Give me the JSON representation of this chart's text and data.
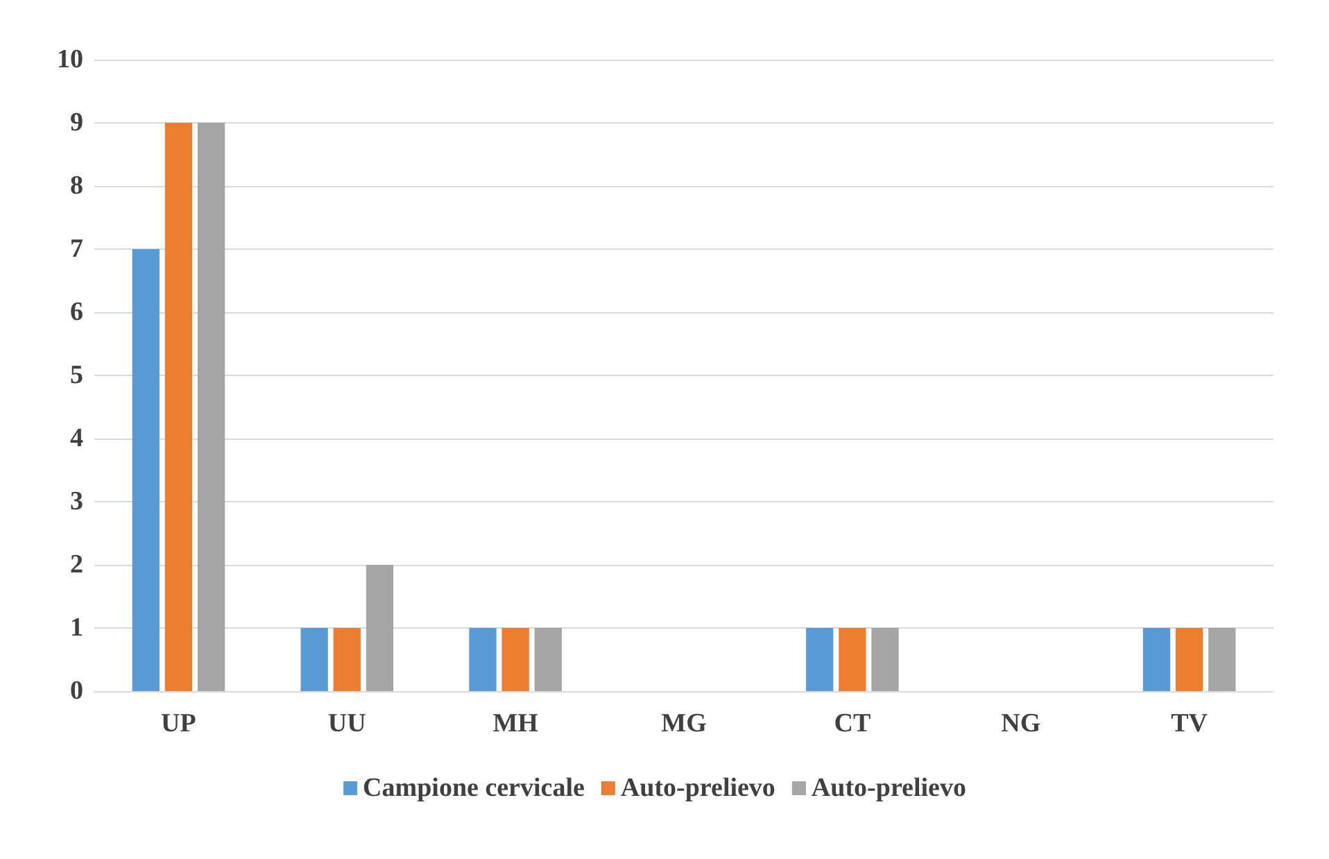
{
  "chart_data": {
    "type": "bar",
    "categories": [
      "UP",
      "UU",
      "MH",
      "MG",
      "CT",
      "NG",
      "TV"
    ],
    "series": [
      {
        "name": "Campione cervicale",
        "color": "#5b9bd5",
        "values": [
          7,
          1,
          1,
          0,
          1,
          0,
          1
        ]
      },
      {
        "name": "Auto-prelievo",
        "color": "#ed7d31",
        "values": [
          9,
          1,
          1,
          0,
          1,
          0,
          1
        ]
      },
      {
        "name": "Auto-prelievo",
        "color": "#a5a5a5",
        "values": [
          9,
          2,
          1,
          0,
          1,
          0,
          1
        ]
      }
    ],
    "ylim": [
      0,
      10
    ],
    "yticks": [
      0,
      1,
      2,
      3,
      4,
      5,
      6,
      7,
      8,
      9,
      10
    ],
    "grid": "y",
    "legend": "bottom"
  }
}
